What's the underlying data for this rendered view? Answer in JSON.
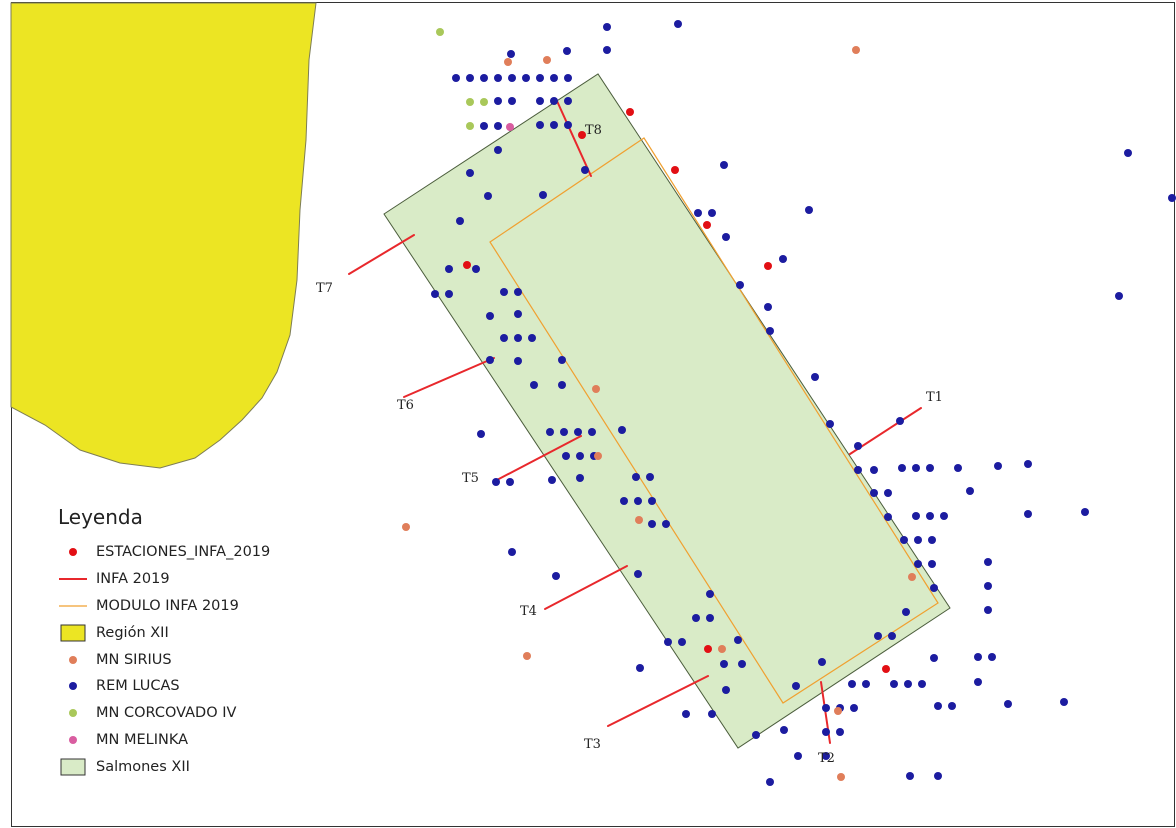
{
  "colors": {
    "region_fill": "#ece523",
    "region_stroke": "#7d7d55",
    "salmones_fill": "#d9ebc7",
    "salmones_stroke": "#4b5d3c",
    "modulo_stroke": "#f0a030",
    "infa_line": "#e8282c",
    "estaciones": "#e20f14",
    "sirius": "#e07e5a",
    "lucas": "#1c1ca0",
    "corcovado": "#a9c85a",
    "melinka": "#d95da0"
  },
  "legend": {
    "title": "Leyenda",
    "items": [
      {
        "label": "ESTACIONES_INFA_2019",
        "symbol": "dot",
        "color": "#e20f14"
      },
      {
        "label": "INFA 2019",
        "symbol": "line",
        "color": "#e8282c"
      },
      {
        "label": "MODULO INFA 2019",
        "symbol": "thinline",
        "color": "#f0a030"
      },
      {
        "label": "Región XII",
        "symbol": "box",
        "color": "#ece523"
      },
      {
        "label": "MN SIRIUS",
        "symbol": "dot",
        "color": "#e07e5a"
      },
      {
        "label": "REM LUCAS",
        "symbol": "dot",
        "color": "#1c1ca0"
      },
      {
        "label": "MN CORCOVADO IV",
        "symbol": "dot",
        "color": "#a9c85a"
      },
      {
        "label": "MN MELINKA",
        "symbol": "dot",
        "color": "#d95da0"
      },
      {
        "label": "Salmones XII",
        "symbol": "box",
        "color": "#d9ebc7"
      }
    ]
  },
  "transect_labels": [
    "T1",
    "T2",
    "T3",
    "T4",
    "T5",
    "T6",
    "T7",
    "T8"
  ]
}
